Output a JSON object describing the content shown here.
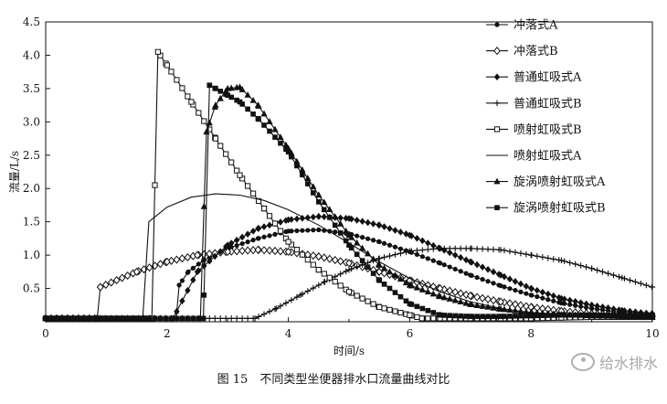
{
  "chart_data": {
    "type": "line",
    "title": "",
    "xlabel": "时间/s",
    "ylabel": "流量/L/s",
    "xlim": [
      0,
      10
    ],
    "ylim": [
      0,
      4.5
    ],
    "xticks": [
      "0",
      "2",
      "4",
      "6",
      "8",
      "10"
    ],
    "yticks": [
      "0.5",
      "1.0",
      "1.5",
      "2.0",
      "2.5",
      "3.0",
      "3.5",
      "4.0",
      "4.5"
    ],
    "grid": false,
    "legend_position": "top-right",
    "series": [
      {
        "name": "冲落式A",
        "marker": "dot",
        "x": [
          0,
          2.15,
          2.2,
          2.35,
          2.6,
          3.0,
          3.5,
          4.0,
          4.5,
          5.0,
          5.5,
          6.0,
          6.5,
          7.0,
          7.5,
          8.0,
          8.5,
          9.0,
          9.5,
          10
        ],
        "y": [
          0.05,
          0.05,
          0.55,
          0.75,
          0.92,
          1.1,
          1.25,
          1.36,
          1.38,
          1.32,
          1.2,
          1.05,
          0.88,
          0.7,
          0.54,
          0.4,
          0.28,
          0.2,
          0.14,
          0.1
        ]
      },
      {
        "name": "冲落式B",
        "marker": "diamond-open",
        "x": [
          0,
          0.85,
          0.9,
          1.5,
          2.0,
          2.5,
          3.0,
          3.5,
          4.0,
          4.5,
          5.0,
          5.5,
          6.0,
          6.5,
          7.0,
          7.5,
          8.0,
          8.5,
          9.0,
          9.5,
          10
        ],
        "y": [
          0.05,
          0.05,
          0.52,
          0.75,
          0.9,
          1.0,
          1.05,
          1.08,
          1.05,
          0.98,
          0.88,
          0.75,
          0.62,
          0.5,
          0.39,
          0.3,
          0.22,
          0.16,
          0.12,
          0.1,
          0.08
        ]
      },
      {
        "name": "普通虹吸式A",
        "marker": "diamond-filled",
        "x": [
          0,
          2.1,
          2.5,
          3.0,
          3.5,
          4.0,
          4.5,
          5.0,
          5.5,
          6.0,
          6.5,
          7.0,
          7.5,
          8.0,
          8.5,
          9.0,
          9.5,
          10
        ],
        "y": [
          0.05,
          0.05,
          0.75,
          1.15,
          1.4,
          1.53,
          1.58,
          1.55,
          1.45,
          1.3,
          1.1,
          0.9,
          0.7,
          0.5,
          0.35,
          0.25,
          0.17,
          0.12
        ]
      },
      {
        "name": "普通虹吸式B",
        "marker": "plus",
        "x": [
          0,
          3.45,
          3.8,
          4.2,
          4.6,
          5.0,
          5.5,
          6.0,
          6.5,
          7.0,
          7.5,
          8.0,
          8.5,
          9.0,
          9.5,
          10
        ],
        "y": [
          0.05,
          0.05,
          0.2,
          0.4,
          0.6,
          0.78,
          0.95,
          1.06,
          1.1,
          1.1,
          1.08,
          1.0,
          0.92,
          0.8,
          0.66,
          0.52
        ]
      },
      {
        "name": "喷射虹吸式B",
        "marker": "square-open",
        "x": [
          0,
          1.75,
          1.85,
          2.0,
          2.4,
          2.8,
          3.2,
          3.6,
          4.0,
          4.5,
          5.0,
          5.5,
          6.0,
          6.2,
          6.5,
          7.0,
          7.5,
          8.0,
          8.5,
          9.0,
          9.5,
          10
        ],
        "y": [
          0.05,
          0.05,
          4.05,
          3.85,
          3.3,
          2.75,
          2.2,
          1.7,
          1.2,
          0.78,
          0.45,
          0.22,
          0.1,
          0.05,
          0.05,
          0.05,
          0.05,
          0.05,
          0.06,
          0.07,
          0.07,
          0.07
        ]
      },
      {
        "name": "喷射虹吸式A",
        "marker": "none",
        "x": [
          0,
          1.6,
          1.7,
          2.0,
          2.4,
          2.8,
          3.2,
          3.6,
          4.0,
          4.5,
          5.0,
          5.5,
          6.0,
          6.5,
          7.0,
          7.5,
          8.0,
          8.5,
          9.0,
          9.5,
          10
        ],
        "y": [
          0.05,
          0.05,
          1.5,
          1.72,
          1.87,
          1.92,
          1.9,
          1.82,
          1.68,
          1.45,
          1.18,
          0.9,
          0.65,
          0.45,
          0.3,
          0.2,
          0.13,
          0.09,
          0.07,
          0.06,
          0.05
        ]
      },
      {
        "name": "旋涡喷射虹吸式A",
        "marker": "triangle-filled",
        "x": [
          0,
          2.55,
          2.65,
          2.8,
          3.0,
          3.2,
          3.5,
          4.0,
          4.5,
          5.0,
          5.5,
          6.0,
          6.5,
          7.0,
          7.5,
          8.0,
          8.5,
          9.0,
          9.5,
          10
        ],
        "y": [
          0.05,
          0.05,
          2.85,
          3.25,
          3.5,
          3.52,
          3.25,
          2.6,
          1.9,
          1.3,
          0.85,
          0.55,
          0.38,
          0.26,
          0.19,
          0.14,
          0.11,
          0.09,
          0.08,
          0.07
        ]
      },
      {
        "name": "旋涡喷射虹吸式B",
        "marker": "square-filled",
        "x": [
          0,
          2.6,
          2.7,
          2.8,
          3.0,
          3.2,
          3.5,
          4.0,
          4.5,
          5.0,
          5.5,
          6.0,
          6.5,
          7.0,
          7.5,
          8.0,
          8.5,
          9.0,
          9.5,
          10
        ],
        "y": [
          0.05,
          0.05,
          3.55,
          3.5,
          3.4,
          3.3,
          3.05,
          2.55,
          1.8,
          1.15,
          0.62,
          0.27,
          0.1,
          0.08,
          0.08,
          0.09,
          0.1,
          0.1,
          0.1,
          0.1
        ]
      }
    ]
  },
  "caption": "图 15　不同类型坐便器排水口流量曲线对比",
  "watermark": "给水排水"
}
